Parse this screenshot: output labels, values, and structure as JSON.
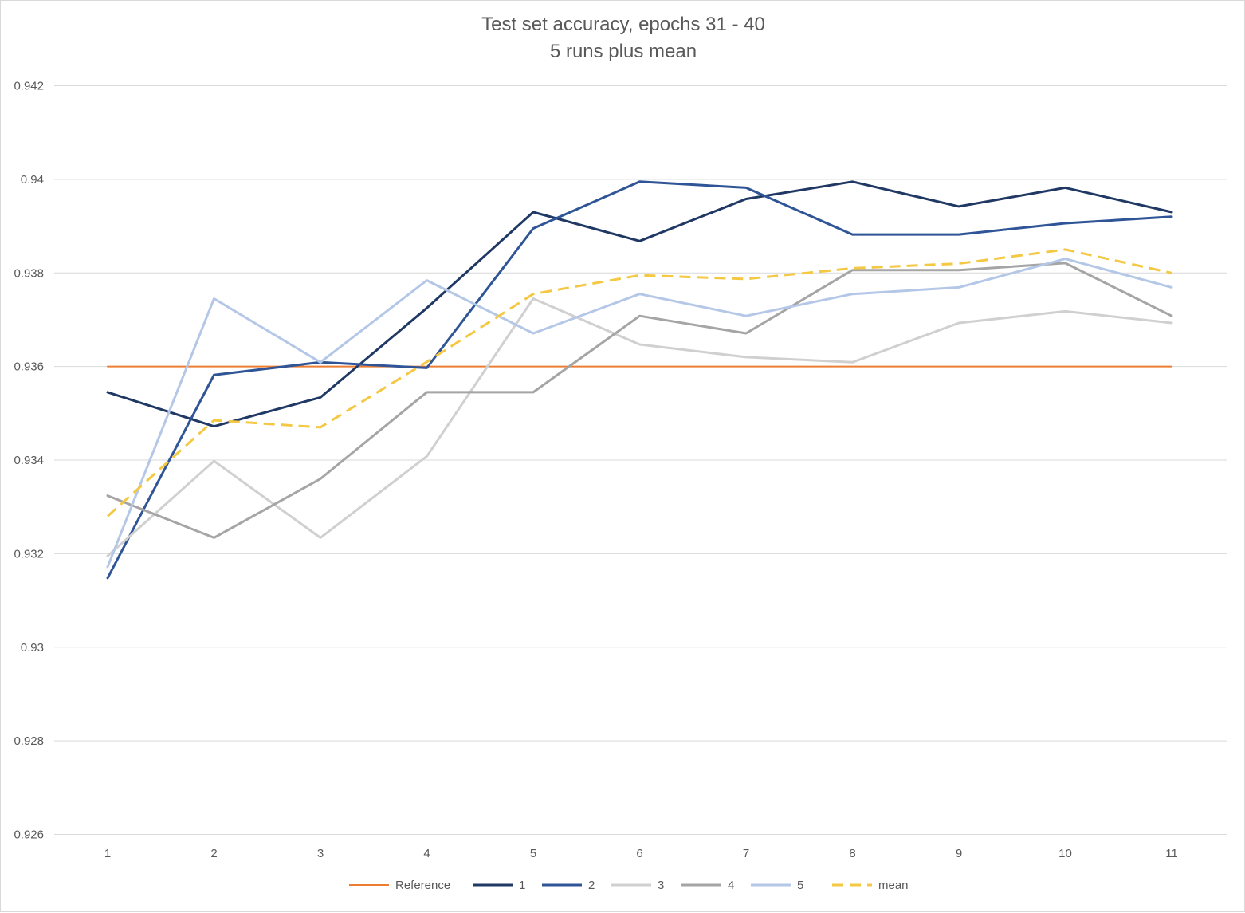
{
  "chart_data": {
    "type": "line",
    "title": "Test set accuracy, epochs 31 - 40",
    "subtitle": "5 runs plus mean",
    "xlabel": "",
    "ylabel": "",
    "categories": [
      "1",
      "2",
      "3",
      "4",
      "5",
      "6",
      "7",
      "8",
      "9",
      "10",
      "11"
    ],
    "y_ticks": [
      "0.926",
      "0.928",
      "0.93",
      "0.932",
      "0.934",
      "0.936",
      "0.938",
      "0.94",
      "0.942"
    ],
    "y_tick_values": [
      0.926,
      0.928,
      0.93,
      0.932,
      0.934,
      0.936,
      0.938,
      0.94,
      0.942
    ],
    "ylim": [
      0.926,
      0.942
    ],
    "grid": true,
    "legend_position": "bottom",
    "series": [
      {
        "name": "Reference",
        "color": "#ED7D31",
        "width": 2,
        "dashed": false,
        "values": [
          0.936,
          0.936,
          0.936,
          0.936,
          0.936,
          0.936,
          0.936,
          0.936,
          0.936,
          0.936,
          0.936
        ]
      },
      {
        "name": "1",
        "color": "#203864",
        "width": 3,
        "dashed": false,
        "values": [
          0.93545,
          0.93472,
          0.93534,
          0.93725,
          0.9393,
          0.93868,
          0.93958,
          0.93995,
          0.93942,
          0.93982,
          0.9393
        ]
      },
      {
        "name": "2",
        "color": "#2F5597",
        "width": 3,
        "dashed": false,
        "values": [
          0.93148,
          0.93582,
          0.93609,
          0.93597,
          0.93895,
          0.93995,
          0.93982,
          0.93882,
          0.93882,
          0.93906,
          0.9392
        ]
      },
      {
        "name": "3",
        "color": "#D0D0D0",
        "width": 3,
        "dashed": false,
        "values": [
          0.93195,
          0.93398,
          0.93234,
          0.93408,
          0.93745,
          0.93647,
          0.9362,
          0.93609,
          0.93693,
          0.93718,
          0.93693
        ]
      },
      {
        "name": "4",
        "color": "#A5A5A5",
        "width": 3,
        "dashed": false,
        "values": [
          0.93324,
          0.93234,
          0.9336,
          0.93545,
          0.93545,
          0.93708,
          0.93671,
          0.93806,
          0.93806,
          0.93821,
          0.93708
        ]
      },
      {
        "name": "5",
        "color": "#B4C7E7",
        "width": 3,
        "dashed": false,
        "values": [
          0.93172,
          0.93745,
          0.93609,
          0.93784,
          0.93671,
          0.93755,
          0.93708,
          0.93755,
          0.93769,
          0.9383,
          0.93769
        ]
      },
      {
        "name": "mean",
        "color": "#F4C842",
        "width": 3,
        "dashed": true,
        "values": [
          0.9328,
          0.93485,
          0.9347,
          0.9361,
          0.93755,
          0.93795,
          0.93787,
          0.9381,
          0.9382,
          0.9385,
          0.938
        ]
      }
    ]
  }
}
